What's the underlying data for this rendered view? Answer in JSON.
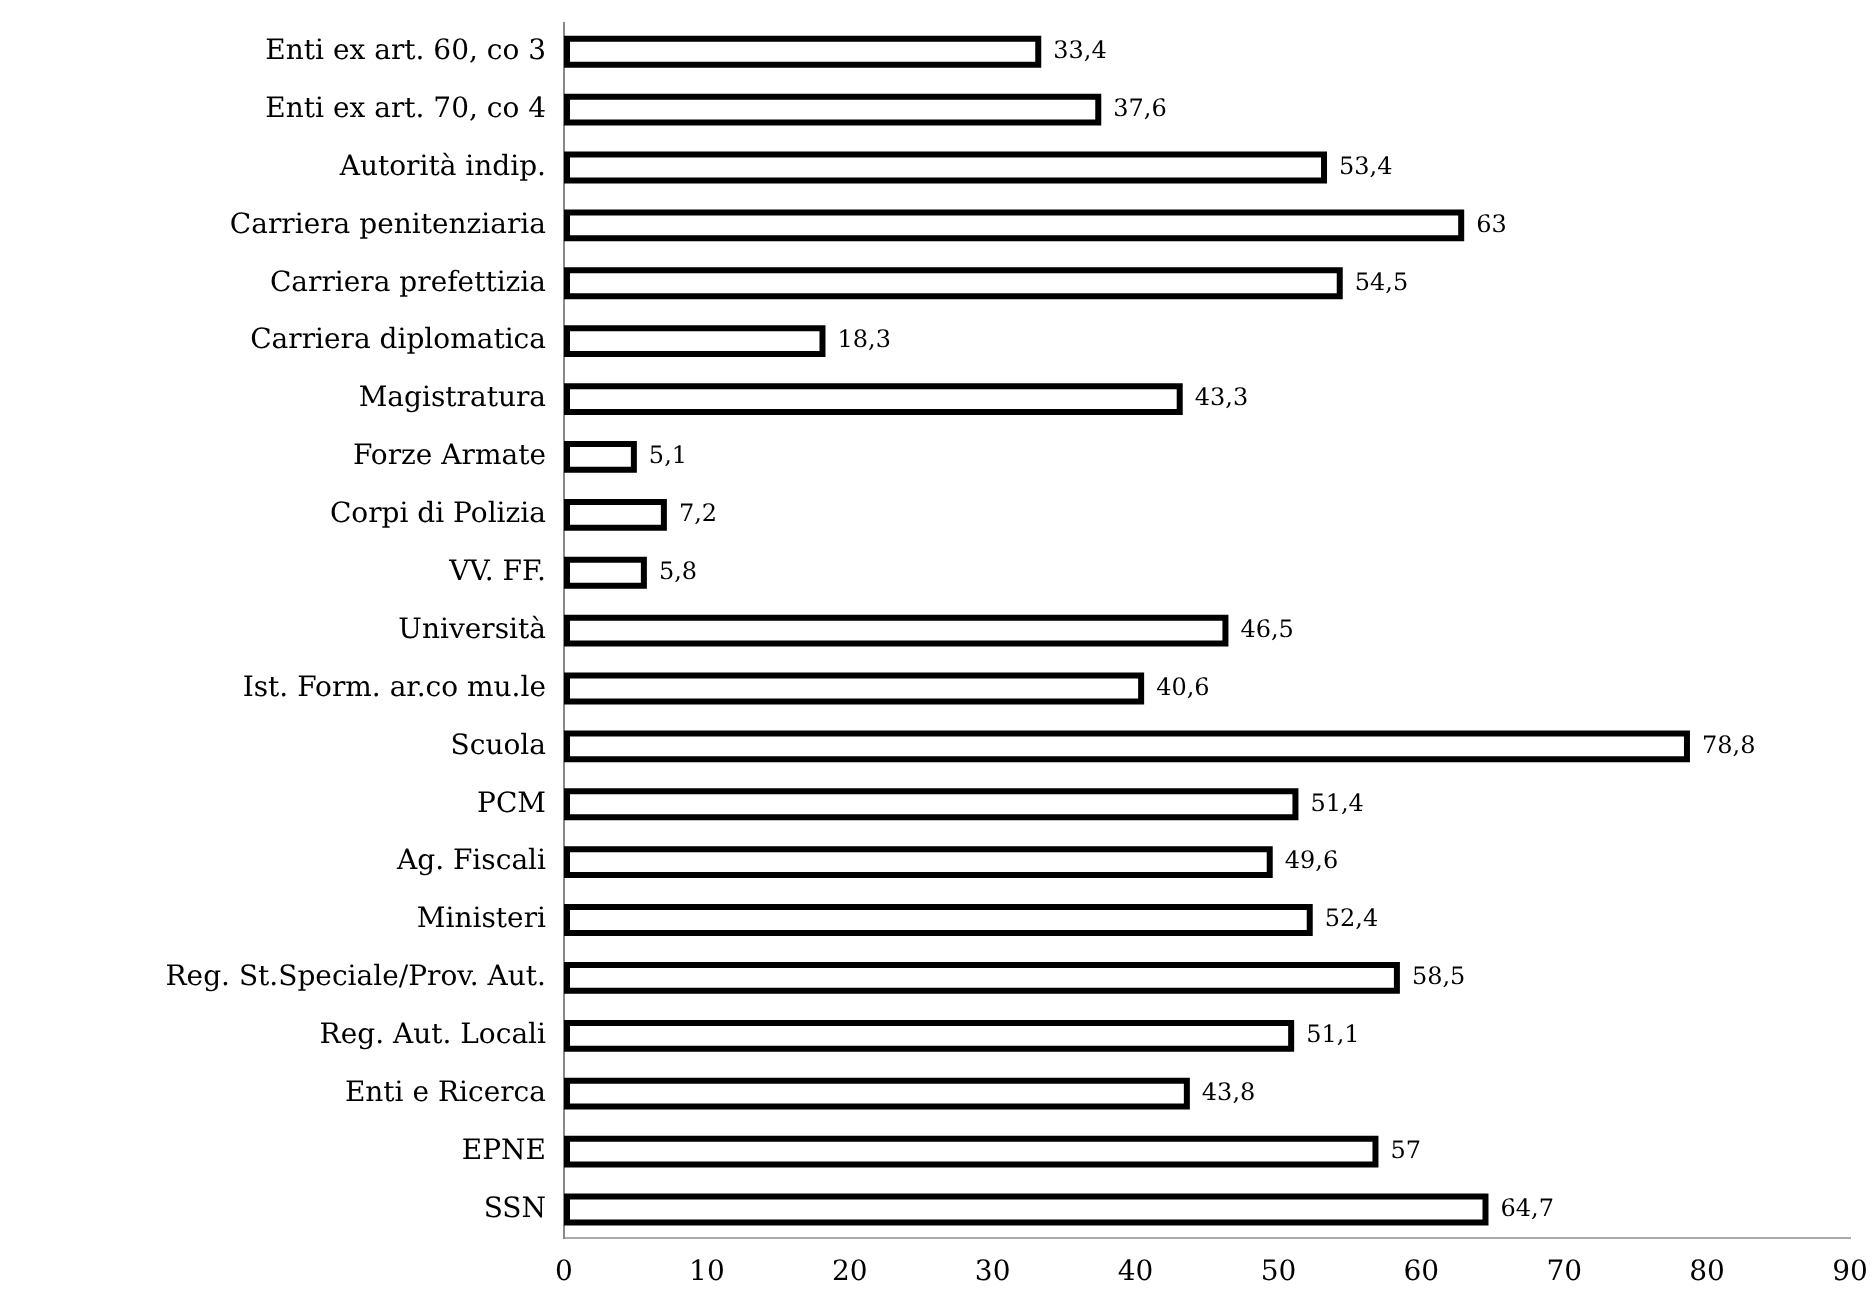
{
  "chart_data": {
    "type": "bar",
    "orientation": "horizontal",
    "categories": [
      "Enti ex art. 60, co 3",
      "Enti ex art. 70, co 4",
      "Autorità indip.",
      "Carriera penitenziaria",
      "Carriera prefettizia",
      "Carriera diplomatica",
      "Magistratura",
      "Forze Armate",
      "Corpi di Polizia",
      "VV. FF.",
      "Università",
      "Ist. Form. ar.co mu.le",
      "Scuola",
      "PCM",
      "Ag. Fiscali",
      "Ministeri",
      "Reg. St.Speciale/Prov. Aut.",
      "Reg. Aut. Locali",
      "Enti e Ricerca",
      "EPNE",
      "SSN"
    ],
    "values": [
      33.4,
      37.6,
      53.4,
      63,
      54.5,
      18.3,
      43.3,
      5.1,
      7.2,
      5.8,
      46.5,
      40.6,
      78.8,
      51.4,
      49.6,
      52.4,
      58.5,
      51.1,
      43.8,
      57,
      64.7
    ],
    "value_labels": [
      "33,4",
      "37,6",
      "53,4",
      "63",
      "54,5",
      "18,3",
      "43,3",
      "5,1",
      "7,2",
      "5,8",
      "46,5",
      "40,6",
      "78,8",
      "51,4",
      "49,6",
      "52,4",
      "58,5",
      "51,1",
      "43,8",
      "57",
      "64,7"
    ],
    "color": "#000000",
    "xlim": [
      0,
      90
    ],
    "xticks": [
      0,
      10,
      20,
      30,
      40,
      50,
      60,
      70,
      80,
      90
    ],
    "grid": false,
    "legend": false
  }
}
